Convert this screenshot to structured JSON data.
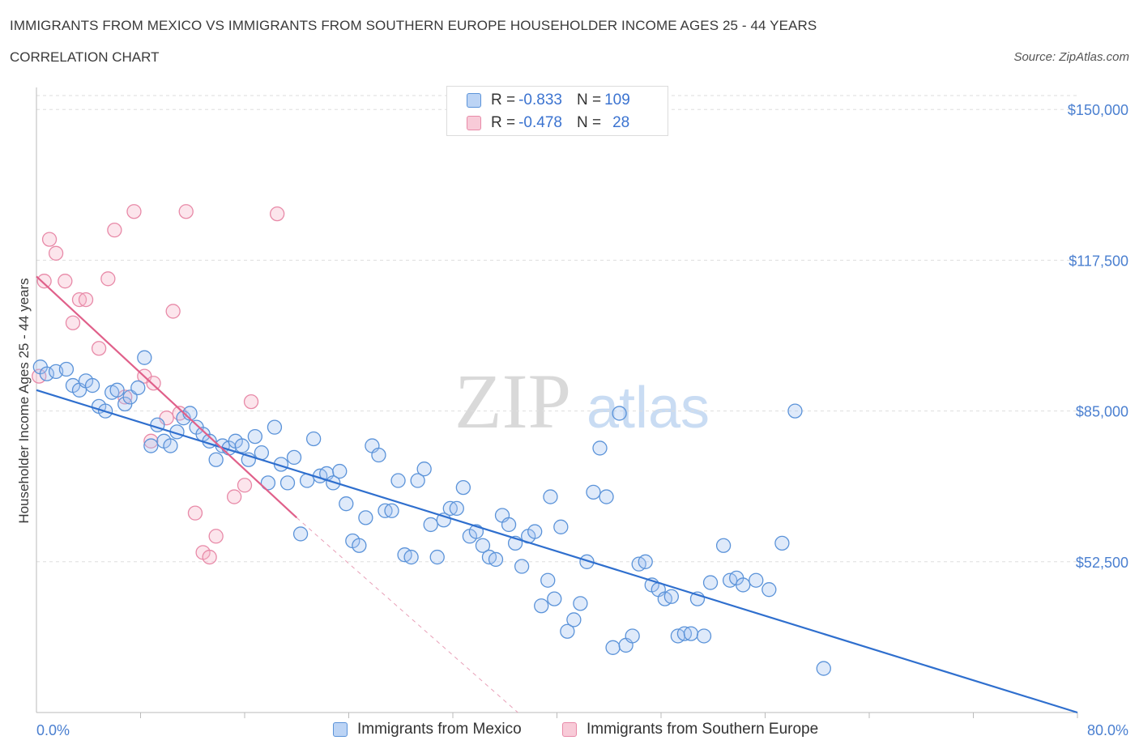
{
  "title": "IMMIGRANTS FROM MEXICO VS IMMIGRANTS FROM SOUTHERN EUROPE HOUSEHOLDER INCOME AGES 25 - 44 YEARS",
  "subtitle": "CORRELATION CHART",
  "source": "Source: ZipAtlas.com",
  "watermark": {
    "zip": "ZIP",
    "atlas": "atlas"
  },
  "colors": {
    "blue": "#5b93d9",
    "blue_fill": "rgba(164,196,240,0.35)",
    "blue_line": "#2f6fce",
    "pink": "#e88aa8",
    "pink_fill": "rgba(245,180,200,0.35)",
    "pink_line": "#e0608a",
    "tick_label": "#4a7fd0",
    "grid": "#dedede"
  },
  "legend": {
    "rows": [
      {
        "r_label": "R = ",
        "r_value": "-0.833",
        "n_label": "N = ",
        "n_value": "109"
      },
      {
        "r_label": "R = ",
        "r_value": "-0.478",
        "n_label": "N = ",
        "n_value": "28"
      }
    ]
  },
  "chart_data": {
    "type": "scatter",
    "title": "IMMIGRANTS FROM MEXICO VS IMMIGRANTS FROM SOUTHERN EUROPE HOUSEHOLDER INCOME AGES 25 - 44 YEARS",
    "xlabel": "",
    "ylabel": "Householder Income Ages 25 - 44 years",
    "xlim": [
      0,
      80
    ],
    "ylim": [
      20000,
      153000
    ],
    "x_tick_labels": [
      {
        "value": 0,
        "label": "0.0%"
      },
      {
        "value": 80,
        "label": "80.0%"
      }
    ],
    "x_minor_ticks": [
      8,
      16,
      24,
      32,
      40,
      48,
      56,
      64,
      72,
      80
    ],
    "y_ticks": [
      {
        "value": 150000,
        "label": "$150,000"
      },
      {
        "value": 117500,
        "label": "$117,500"
      },
      {
        "value": 85000,
        "label": "$85,000"
      },
      {
        "value": 52500,
        "label": "$52,500"
      }
    ],
    "grid": true,
    "legend_position": "top-center",
    "series": [
      {
        "name": "Immigrants from Mexico",
        "color": "#5b93d9",
        "trend": {
          "x": [
            0,
            80
          ],
          "y": [
            89500,
            20000
          ]
        },
        "trend_dashed_extension": null,
        "points": [
          [
            0.3,
            94500
          ],
          [
            0.8,
            93000
          ],
          [
            1.5,
            93500
          ],
          [
            2.3,
            94000
          ],
          [
            2.8,
            90500
          ],
          [
            3.3,
            89500
          ],
          [
            3.8,
            91500
          ],
          [
            4.3,
            90500
          ],
          [
            4.8,
            86000
          ],
          [
            5.3,
            85000
          ],
          [
            5.8,
            89000
          ],
          [
            6.2,
            89500
          ],
          [
            6.8,
            86500
          ],
          [
            7.2,
            88000
          ],
          [
            7.8,
            90000
          ],
          [
            8.3,
            96500
          ],
          [
            8.8,
            77500
          ],
          [
            9.3,
            82000
          ],
          [
            9.8,
            78500
          ],
          [
            10.3,
            77500
          ],
          [
            10.8,
            80500
          ],
          [
            11.3,
            83500
          ],
          [
            11.8,
            84500
          ],
          [
            12.3,
            81500
          ],
          [
            12.8,
            80000
          ],
          [
            13.3,
            78500
          ],
          [
            13.8,
            74500
          ],
          [
            14.3,
            77500
          ],
          [
            14.8,
            77000
          ],
          [
            15.3,
            78500
          ],
          [
            15.8,
            77500
          ],
          [
            16.3,
            74500
          ],
          [
            16.8,
            79500
          ],
          [
            17.3,
            76000
          ],
          [
            17.8,
            69500
          ],
          [
            18.3,
            81500
          ],
          [
            18.8,
            73500
          ],
          [
            19.3,
            69500
          ],
          [
            19.8,
            75000
          ],
          [
            20.3,
            58500
          ],
          [
            20.8,
            70000
          ],
          [
            21.3,
            79000
          ],
          [
            21.8,
            71000
          ],
          [
            22.3,
            71500
          ],
          [
            22.8,
            69500
          ],
          [
            23.3,
            72000
          ],
          [
            23.8,
            65000
          ],
          [
            24.3,
            57000
          ],
          [
            24.8,
            56000
          ],
          [
            25.3,
            62000
          ],
          [
            25.8,
            77500
          ],
          [
            26.3,
            75500
          ],
          [
            26.8,
            63500
          ],
          [
            27.3,
            63500
          ],
          [
            27.8,
            70000
          ],
          [
            28.3,
            54000
          ],
          [
            28.8,
            53500
          ],
          [
            29.3,
            70000
          ],
          [
            29.8,
            72500
          ],
          [
            30.3,
            60500
          ],
          [
            30.8,
            53500
          ],
          [
            31.3,
            61500
          ],
          [
            31.8,
            64000
          ],
          [
            32.3,
            64000
          ],
          [
            32.8,
            68500
          ],
          [
            33.3,
            58000
          ],
          [
            33.8,
            59000
          ],
          [
            34.3,
            56000
          ],
          [
            34.8,
            53500
          ],
          [
            35.3,
            53000
          ],
          [
            35.8,
            62500
          ],
          [
            36.3,
            60500
          ],
          [
            36.8,
            56500
          ],
          [
            37.3,
            51500
          ],
          [
            37.8,
            58000
          ],
          [
            38.3,
            59000
          ],
          [
            38.8,
            43000
          ],
          [
            39.3,
            48500
          ],
          [
            39.8,
            44500
          ],
          [
            40.3,
            60000
          ],
          [
            40.8,
            37500
          ],
          [
            41.3,
            40000
          ],
          [
            41.8,
            43500
          ],
          [
            42.3,
            52500
          ],
          [
            42.8,
            67500
          ],
          [
            43.3,
            77000
          ],
          [
            43.8,
            66500
          ],
          [
            44.3,
            34000
          ],
          [
            44.8,
            84500
          ],
          [
            45.3,
            34500
          ],
          [
            46.3,
            52000
          ],
          [
            46.8,
            52500
          ],
          [
            47.3,
            47500
          ],
          [
            47.8,
            46500
          ],
          [
            48.3,
            44500
          ],
          [
            48.8,
            45000
          ],
          [
            49.3,
            36500
          ],
          [
            49.8,
            37000
          ],
          [
            50.3,
            37000
          ],
          [
            51.3,
            36500
          ],
          [
            53.3,
            48500
          ],
          [
            53.8,
            49000
          ],
          [
            54.3,
            47500
          ],
          [
            55.3,
            48500
          ],
          [
            56.3,
            46500
          ],
          [
            57.3,
            56500
          ],
          [
            58.3,
            85000
          ],
          [
            60.5,
            29500
          ],
          [
            45.8,
            36500
          ],
          [
            52.8,
            56000
          ],
          [
            51.8,
            48000
          ],
          [
            50.8,
            44500
          ],
          [
            39.5,
            66500
          ]
        ]
      },
      {
        "name": "Immigrants from Southern Europe",
        "color": "#e88aa8",
        "trend": {
          "x": [
            0,
            20
          ],
          "y": [
            114000,
            62000
          ]
        },
        "trend_dashed_extension": {
          "x": [
            20,
            37
          ],
          "y": [
            62000,
            20000
          ]
        },
        "points": [
          [
            0.2,
            92500
          ],
          [
            0.6,
            113000
          ],
          [
            1.0,
            122000
          ],
          [
            1.5,
            119000
          ],
          [
            2.2,
            113000
          ],
          [
            2.8,
            104000
          ],
          [
            3.3,
            109000
          ],
          [
            3.8,
            109000
          ],
          [
            4.8,
            98500
          ],
          [
            5.5,
            113500
          ],
          [
            6.0,
            124000
          ],
          [
            6.8,
            88000
          ],
          [
            7.5,
            128000
          ],
          [
            8.3,
            92500
          ],
          [
            8.8,
            78500
          ],
          [
            9.0,
            91000
          ],
          [
            10.0,
            83500
          ],
          [
            10.5,
            106500
          ],
          [
            11.0,
            84500
          ],
          [
            11.5,
            128000
          ],
          [
            12.2,
            63000
          ],
          [
            12.8,
            54500
          ],
          [
            13.3,
            53500
          ],
          [
            13.8,
            58000
          ],
          [
            15.2,
            66500
          ],
          [
            16.5,
            87000
          ],
          [
            16.0,
            69000
          ],
          [
            18.5,
            127500
          ]
        ]
      }
    ]
  },
  "bottom_legend": [
    {
      "label": "Immigrants from Mexico"
    },
    {
      "label": "Immigrants from Southern Europe"
    }
  ]
}
